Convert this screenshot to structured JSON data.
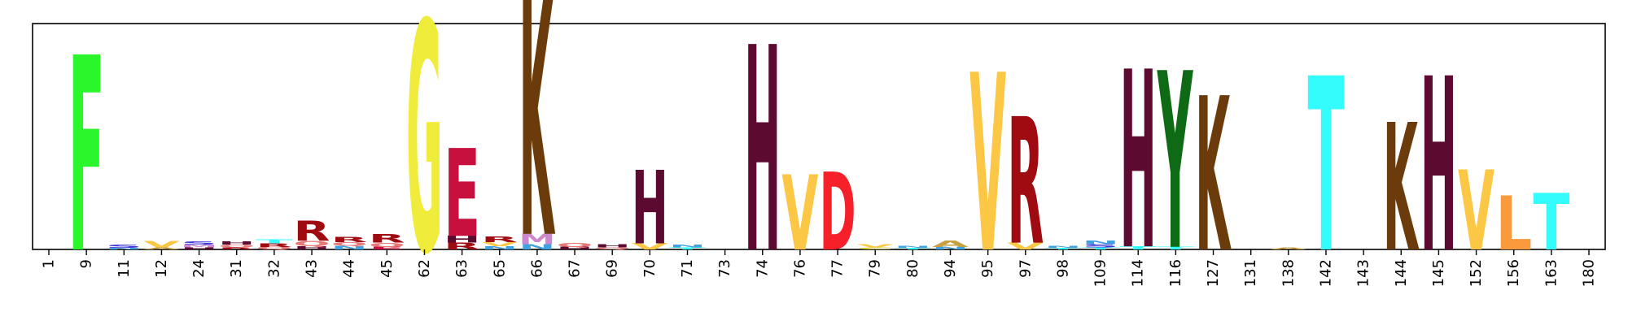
{
  "chart_data": {
    "type": "sequence-logo",
    "title": "",
    "xlabel": "",
    "ylabel": "",
    "ylim": [
      0,
      4.32
    ],
    "grid": false,
    "legend": "none",
    "positions": [
      "1",
      "9",
      "11",
      "12",
      "24",
      "31",
      "32",
      "43",
      "44",
      "45",
      "62",
      "63",
      "65",
      "66",
      "67",
      "69",
      "70",
      "71",
      "73",
      "74",
      "76",
      "77",
      "79",
      "80",
      "94",
      "95",
      "97",
      "98",
      "109",
      "114",
      "116",
      "127",
      "131",
      "138",
      "142",
      "143",
      "144",
      "145",
      "152",
      "156",
      "163",
      "180"
    ],
    "colors": {
      "F": "#2bf52b",
      "G": "#f0ec3c",
      "E": "#c8103e",
      "K": "#6b3b0b",
      "H": "#5c0a2f",
      "V": "#fcc745",
      "D": "#f5202a",
      "R": "#a00b12",
      "Y": "#0e6a14",
      "T": "#35fcfc",
      "L": "#fb9a3c",
      "S": "#3c34d8",
      "M": "#cc88cc",
      "Q": "#e87878",
      "N": "#40a0e0",
      "A": "#c8a040",
      "C": "#e8d830"
    },
    "stacks": [
      [],
      [
        {
          "letter": "F",
          "height": 3.73
        }
      ],
      [
        {
          "letter": "S",
          "height": 0.06
        },
        {
          "letter": "N",
          "height": 0.03
        }
      ],
      [
        {
          "letter": "V",
          "height": 0.12
        },
        {
          "letter": "A",
          "height": 0.04
        }
      ],
      [
        {
          "letter": "S",
          "height": 0.06
        },
        {
          "letter": "M",
          "height": 0.05
        },
        {
          "letter": "H",
          "height": 0.04
        }
      ],
      [
        {
          "letter": "H",
          "height": 0.06
        },
        {
          "letter": "Q",
          "height": 0.05
        },
        {
          "letter": "R",
          "height": 0.04
        }
      ],
      [
        {
          "letter": "T",
          "height": 0.08
        },
        {
          "letter": "R",
          "height": 0.07
        },
        {
          "letter": "Q",
          "height": 0.05
        }
      ],
      [
        {
          "letter": "R",
          "height": 0.38
        },
        {
          "letter": "Q",
          "height": 0.1
        },
        {
          "letter": "H",
          "height": 0.06
        }
      ],
      [
        {
          "letter": "R",
          "height": 0.1
        },
        {
          "letter": "N",
          "height": 0.07
        },
        {
          "letter": "Q",
          "height": 0.07
        }
      ],
      [
        {
          "letter": "R",
          "height": 0.16
        },
        {
          "letter": "Q",
          "height": 0.08
        },
        {
          "letter": "E",
          "height": 0.05
        }
      ],
      [
        {
          "letter": "G",
          "height": 4.39
        }
      ],
      [
        {
          "letter": "E",
          "height": 1.68
        },
        {
          "letter": "R",
          "height": 0.13
        },
        {
          "letter": "H",
          "height": 0.13
        }
      ],
      [
        {
          "letter": "R",
          "height": 0.11
        },
        {
          "letter": "V",
          "height": 0.08
        },
        {
          "letter": "N",
          "height": 0.06
        }
      ],
      [
        {
          "letter": "K",
          "height": 4.56
        },
        {
          "letter": "M",
          "height": 0.2
        },
        {
          "letter": "N",
          "height": 0.1
        }
      ],
      [
        {
          "letter": "Q",
          "height": 0.08
        },
        {
          "letter": "H",
          "height": 0.05
        }
      ],
      [
        {
          "letter": "H",
          "height": 0.06
        },
        {
          "letter": "Q",
          "height": 0.04
        }
      ],
      [
        {
          "letter": "H",
          "height": 1.4
        },
        {
          "letter": "V",
          "height": 0.12
        }
      ],
      [
        {
          "letter": "N",
          "height": 0.05
        },
        {
          "letter": "T",
          "height": 0.04
        }
      ],
      [],
      [
        {
          "letter": "H",
          "height": 3.93
        }
      ],
      [
        {
          "letter": "V",
          "height": 1.43
        }
      ],
      [
        {
          "letter": "D",
          "height": 1.49
        }
      ],
      [
        {
          "letter": "V",
          "height": 0.06
        },
        {
          "letter": "C",
          "height": 0.04
        }
      ],
      [
        {
          "letter": "N",
          "height": 0.04
        },
        {
          "letter": "T",
          "height": 0.03
        }
      ],
      [
        {
          "letter": "A",
          "height": 0.12
        },
        {
          "letter": "N",
          "height": 0.05
        }
      ],
      [
        {
          "letter": "V",
          "height": 3.4
        }
      ],
      [
        {
          "letter": "R",
          "height": 2.42
        },
        {
          "letter": "V",
          "height": 0.13
        }
      ],
      [
        {
          "letter": "N",
          "height": 0.04
        },
        {
          "letter": "T",
          "height": 0.03
        }
      ],
      [
        {
          "letter": "N",
          "height": 0.07
        },
        {
          "letter": "S",
          "height": 0.06
        },
        {
          "letter": "T",
          "height": 0.04
        }
      ],
      [
        {
          "letter": "H",
          "height": 3.4
        },
        {
          "letter": "T",
          "height": 0.06
        }
      ],
      [
        {
          "letter": "Y",
          "height": 3.38
        },
        {
          "letter": "T",
          "height": 0.05
        }
      ],
      [
        {
          "letter": "K",
          "height": 2.95
        }
      ],
      [],
      [
        {
          "letter": "A",
          "height": 0.04
        }
      ],
      [
        {
          "letter": "T",
          "height": 3.33
        }
      ],
      [],
      [
        {
          "letter": "K",
          "height": 2.44
        }
      ],
      [
        {
          "letter": "H",
          "height": 3.33
        }
      ],
      [
        {
          "letter": "V",
          "height": 1.53
        }
      ],
      [
        {
          "letter": "L",
          "height": 1.03
        }
      ],
      [
        {
          "letter": "T",
          "height": 1.08
        }
      ],
      []
    ]
  }
}
